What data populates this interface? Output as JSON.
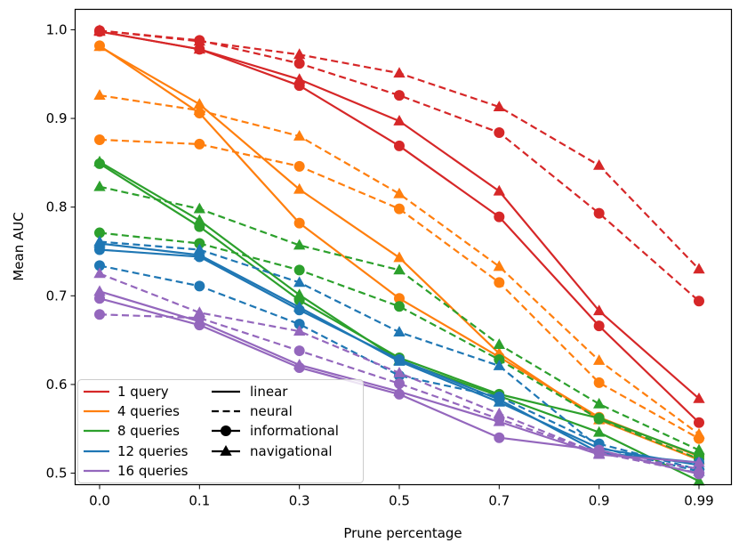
{
  "chart_data": {
    "type": "line",
    "title": "",
    "xlabel": "Prune percentage",
    "ylabel": "Mean AUC",
    "categories": [
      "0.0",
      "0.1",
      "0.3",
      "0.5",
      "0.7",
      "0.9",
      "0.99"
    ],
    "yticks": [
      "0.5",
      "0.6",
      "0.7",
      "0.8",
      "0.9",
      "1.0"
    ],
    "ylim": [
      0.487,
      1.023
    ],
    "legend_position": "lower-left",
    "legend": {
      "colors": [
        {
          "label": "1 query",
          "color": "#d62728"
        },
        {
          "label": "4 queries",
          "color": "#ff7f0e"
        },
        {
          "label": "8 queries",
          "color": "#2ca02c"
        },
        {
          "label": "12 queries",
          "color": "#1f77b4"
        },
        {
          "label": "16 queries",
          "color": "#9467bd"
        }
      ],
      "styles": [
        {
          "label": "linear",
          "kind": "solid"
        },
        {
          "label": "neural",
          "kind": "dashed"
        },
        {
          "label": "informational",
          "kind": "circle"
        },
        {
          "label": "navigational",
          "kind": "triangle"
        }
      ]
    },
    "series": [
      {
        "name": "1 query linear informational",
        "color": "#d62728",
        "dash": false,
        "marker": "circle",
        "values": [
          0.998,
          0.978,
          0.937,
          0.869,
          0.789,
          0.666,
          0.557
        ]
      },
      {
        "name": "1 query linear navigational",
        "color": "#d62728",
        "dash": false,
        "marker": "triangle",
        "values": [
          0.998,
          0.978,
          0.944,
          0.897,
          0.818,
          0.683,
          0.584
        ]
      },
      {
        "name": "1 query neural informational",
        "color": "#d62728",
        "dash": true,
        "marker": "circle",
        "values": [
          0.999,
          0.988,
          0.962,
          0.926,
          0.884,
          0.793,
          0.694
        ]
      },
      {
        "name": "1 query neural navigational",
        "color": "#d62728",
        "dash": true,
        "marker": "triangle",
        "values": [
          0.999,
          0.987,
          0.972,
          0.951,
          0.913,
          0.847,
          0.73
        ]
      },
      {
        "name": "4 queries linear informational",
        "color": "#ff7f0e",
        "dash": false,
        "marker": "circle",
        "values": [
          0.982,
          0.906,
          0.782,
          0.697,
          0.631,
          0.563,
          0.519
        ]
      },
      {
        "name": "4 queries linear navigational",
        "color": "#ff7f0e",
        "dash": false,
        "marker": "triangle",
        "values": [
          0.981,
          0.916,
          0.82,
          0.743,
          0.635,
          0.56,
          0.515
        ]
      },
      {
        "name": "4 queries neural informational",
        "color": "#ff7f0e",
        "dash": true,
        "marker": "circle",
        "values": [
          0.876,
          0.871,
          0.846,
          0.798,
          0.715,
          0.602,
          0.539
        ]
      },
      {
        "name": "4 queries neural navigational",
        "color": "#ff7f0e",
        "dash": true,
        "marker": "triangle",
        "values": [
          0.926,
          0.909,
          0.88,
          0.815,
          0.733,
          0.627,
          0.544
        ]
      },
      {
        "name": "8 queries linear informational",
        "color": "#2ca02c",
        "dash": false,
        "marker": "circle",
        "values": [
          0.849,
          0.778,
          0.695,
          0.63,
          0.589,
          0.562,
          0.52
        ]
      },
      {
        "name": "8 queries linear navigational",
        "color": "#2ca02c",
        "dash": false,
        "marker": "triangle",
        "values": [
          0.851,
          0.785,
          0.701,
          0.627,
          0.587,
          0.546,
          0.491
        ]
      },
      {
        "name": "8 queries neural informational",
        "color": "#2ca02c",
        "dash": true,
        "marker": "circle",
        "values": [
          0.771,
          0.759,
          0.729,
          0.688,
          0.628,
          0.561,
          0.516
        ]
      },
      {
        "name": "8 queries neural navigational",
        "color": "#2ca02c",
        "dash": true,
        "marker": "triangle",
        "values": [
          0.823,
          0.798,
          0.757,
          0.729,
          0.645,
          0.578,
          0.526
        ]
      },
      {
        "name": "12 queries linear informational",
        "color": "#1f77b4",
        "dash": false,
        "marker": "circle",
        "values": [
          0.752,
          0.744,
          0.684,
          0.628,
          0.583,
          0.523,
          0.512
        ]
      },
      {
        "name": "12 queries linear navigational",
        "color": "#1f77b4",
        "dash": false,
        "marker": "triangle",
        "values": [
          0.759,
          0.746,
          0.687,
          0.626,
          0.58,
          0.528,
          0.509
        ]
      },
      {
        "name": "12 queries neural informational",
        "color": "#1f77b4",
        "dash": true,
        "marker": "circle",
        "values": [
          0.734,
          0.711,
          0.668,
          0.61,
          0.586,
          0.533,
          0.504
        ]
      },
      {
        "name": "12 queries neural navigational",
        "color": "#1f77b4",
        "dash": true,
        "marker": "triangle",
        "values": [
          0.761,
          0.752,
          0.715,
          0.659,
          0.621,
          0.529,
          0.502
        ]
      },
      {
        "name": "16 queries linear informational",
        "color": "#9467bd",
        "dash": false,
        "marker": "circle",
        "values": [
          0.697,
          0.667,
          0.619,
          0.589,
          0.54,
          0.526,
          0.499
        ]
      },
      {
        "name": "16 queries linear navigational",
        "color": "#9467bd",
        "dash": false,
        "marker": "triangle",
        "values": [
          0.705,
          0.671,
          0.622,
          0.592,
          0.558,
          0.521,
          0.512
        ]
      },
      {
        "name": "16 queries neural informational",
        "color": "#9467bd",
        "dash": true,
        "marker": "circle",
        "values": [
          0.679,
          0.675,
          0.638,
          0.601,
          0.561,
          0.523,
          0.5
        ]
      },
      {
        "name": "16 queries neural navigational",
        "color": "#9467bd",
        "dash": true,
        "marker": "triangle",
        "values": [
          0.725,
          0.681,
          0.66,
          0.613,
          0.567,
          0.522,
          0.505
        ]
      }
    ]
  }
}
